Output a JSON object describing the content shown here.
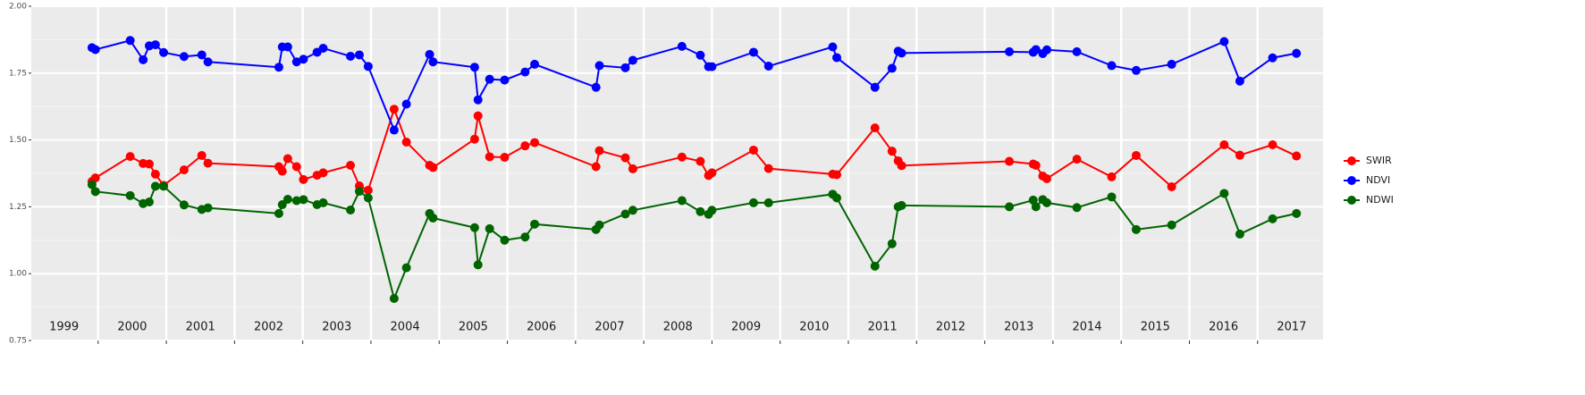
{
  "chart_data": {
    "type": "line",
    "x": [
      1999.91,
      1999.96,
      2000.47,
      2000.66,
      2000.75,
      2000.84,
      2000.96,
      2001.26,
      2001.52,
      2001.61,
      2002.65,
      2002.7,
      2002.78,
      2002.91,
      2003.01,
      2003.21,
      2003.3,
      2003.7,
      2003.83,
      2003.96,
      2004.34,
      2004.52,
      2004.86,
      2004.91,
      2005.52,
      2005.57,
      2005.74,
      2005.96,
      2006.26,
      2006.4,
      2007.3,
      2007.35,
      2007.73,
      2007.84,
      2008.56,
      2008.83,
      2008.95,
      2009.0,
      2009.61,
      2009.83,
      2010.77,
      2010.83,
      2011.39,
      2011.64,
      2011.73,
      2011.78,
      2013.36,
      2013.71,
      2013.75,
      2013.85,
      2013.91,
      2014.35,
      2014.86,
      2015.22,
      2015.74,
      2016.51,
      2016.74,
      2017.22,
      2017.57
    ],
    "series": [
      {
        "name": "SWIR",
        "color": "#ff0000",
        "values": [
          1.345,
          1.358,
          1.438,
          1.412,
          1.41,
          1.372,
          1.33,
          1.388,
          1.442,
          1.413,
          1.4,
          1.383,
          1.43,
          1.4,
          1.352,
          1.368,
          1.377,
          1.405,
          1.328,
          1.312,
          1.615,
          1.492,
          1.405,
          1.397,
          1.503,
          1.59,
          1.437,
          1.435,
          1.478,
          1.49,
          1.4,
          1.46,
          1.433,
          1.392,
          1.436,
          1.42,
          1.367,
          1.377,
          1.462,
          1.393,
          1.372,
          1.37,
          1.545,
          1.458,
          1.422,
          1.404,
          1.42,
          1.41,
          1.405,
          1.365,
          1.355,
          1.428,
          1.362,
          1.442,
          1.325,
          1.482,
          1.443,
          1.482,
          1.44
        ]
      },
      {
        "name": "NDVI",
        "color": "#0000ff",
        "values": [
          1.845,
          1.838,
          1.872,
          1.8,
          1.852,
          1.856,
          1.827,
          1.812,
          1.818,
          1.792,
          1.772,
          1.848,
          1.848,
          1.792,
          1.802,
          1.828,
          1.843,
          1.813,
          1.818,
          1.775,
          1.537,
          1.634,
          1.82,
          1.792,
          1.772,
          1.65,
          1.727,
          1.724,
          1.754,
          1.783,
          1.697,
          1.778,
          1.77,
          1.798,
          1.85,
          1.817,
          1.774,
          1.774,
          1.828,
          1.776,
          1.848,
          1.808,
          1.697,
          1.768,
          1.832,
          1.825,
          1.83,
          1.828,
          1.838,
          1.823,
          1.837,
          1.83,
          1.778,
          1.76,
          1.783,
          1.868,
          1.72,
          1.807,
          1.824
        ]
      },
      {
        "name": "NDWI",
        "color": "#006400",
        "values": [
          1.333,
          1.307,
          1.292,
          1.262,
          1.268,
          1.327,
          1.327,
          1.257,
          1.24,
          1.246,
          1.225,
          1.258,
          1.278,
          1.273,
          1.277,
          1.258,
          1.265,
          1.238,
          1.308,
          1.283,
          0.907,
          1.022,
          1.225,
          1.208,
          1.172,
          1.033,
          1.168,
          1.125,
          1.137,
          1.185,
          1.165,
          1.182,
          1.223,
          1.237,
          1.273,
          1.232,
          1.222,
          1.237,
          1.265,
          1.265,
          1.297,
          1.283,
          1.028,
          1.112,
          1.25,
          1.255,
          1.25,
          1.275,
          1.25,
          1.277,
          1.265,
          1.247,
          1.287,
          1.165,
          1.182,
          1.3,
          1.148,
          1.205,
          1.225
        ]
      }
    ],
    "xlim": [
      1999.02,
      2017.96
    ],
    "xticks": [
      2000,
      2001,
      2002,
      2003,
      2004,
      2005,
      2006,
      2007,
      2008,
      2009,
      2010,
      2011,
      2012,
      2013,
      2014,
      2015,
      2016,
      2017
    ],
    "ylim": [
      0.75,
      2.0
    ],
    "yticks": [
      {
        "value": 0.75,
        "label": "0.75"
      },
      {
        "value": 1.0,
        "label": "1.00"
      },
      {
        "value": 1.25,
        "label": "1.25"
      },
      {
        "value": 1.5,
        "label": "1.50"
      },
      {
        "value": 1.75,
        "label": "1.75"
      },
      {
        "value": 2.0,
        "label": "2.00"
      }
    ],
    "grid": true,
    "legend": "right",
    "annotations": [
      {
        "text": "1999",
        "x": 1999.5,
        "y": 0.8
      },
      {
        "text": "2000",
        "x": 2000.5,
        "y": 0.8
      },
      {
        "text": "2001",
        "x": 2001.5,
        "y": 0.8
      },
      {
        "text": "2002",
        "x": 2002.5,
        "y": 0.8
      },
      {
        "text": "2003",
        "x": 2003.5,
        "y": 0.8
      },
      {
        "text": "2004",
        "x": 2004.5,
        "y": 0.8
      },
      {
        "text": "2005",
        "x": 2005.5,
        "y": 0.8
      },
      {
        "text": "2006",
        "x": 2006.5,
        "y": 0.8
      },
      {
        "text": "2007",
        "x": 2007.5,
        "y": 0.8
      },
      {
        "text": "2008",
        "x": 2008.5,
        "y": 0.8
      },
      {
        "text": "2009",
        "x": 2009.5,
        "y": 0.8
      },
      {
        "text": "2010",
        "x": 2010.5,
        "y": 0.8
      },
      {
        "text": "2011",
        "x": 2011.5,
        "y": 0.8
      },
      {
        "text": "2012",
        "x": 2012.5,
        "y": 0.8
      },
      {
        "text": "2013",
        "x": 2013.5,
        "y": 0.8
      },
      {
        "text": "2014",
        "x": 2014.5,
        "y": 0.8
      },
      {
        "text": "2015",
        "x": 2015.5,
        "y": 0.8
      },
      {
        "text": "2016",
        "x": 2016.5,
        "y": 0.8
      },
      {
        "text": "2017",
        "x": 2017.5,
        "y": 0.8
      }
    ]
  }
}
